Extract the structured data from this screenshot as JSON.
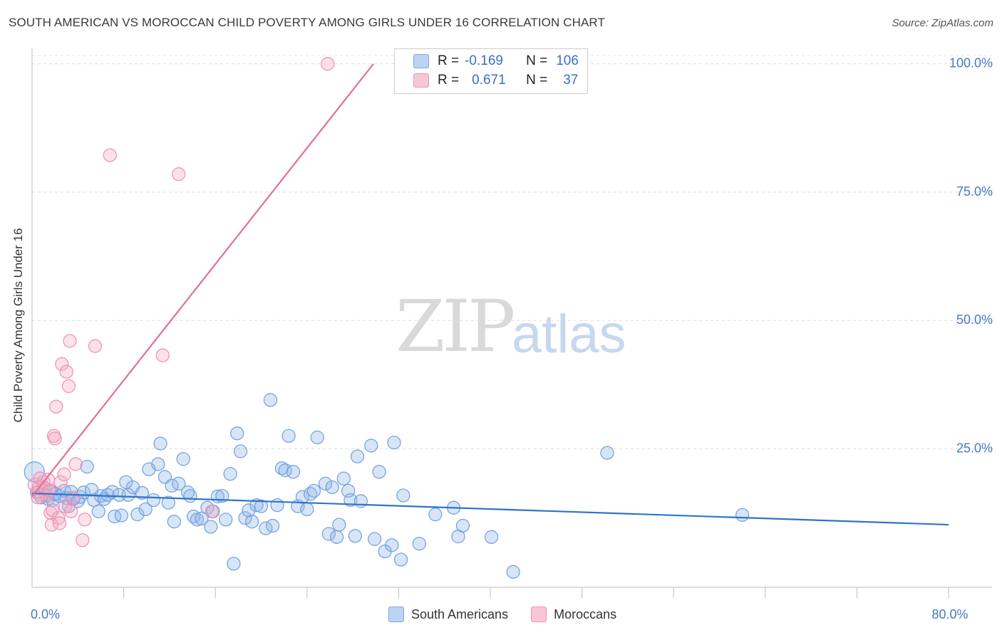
{
  "title": "SOUTH AMERICAN VS MOROCCAN CHILD POVERTY AMONG GIRLS UNDER 16 CORRELATION CHART",
  "source": "Source: ZipAtlas.com",
  "watermark": {
    "zip": "ZIP",
    "atlas": "atlas"
  },
  "legend_top": {
    "rows": [
      {
        "r_label": "R =",
        "r_value": "-0.169",
        "n_label": "N =",
        "n_value": "106",
        "color": "#8db4e8"
      },
      {
        "r_label": "R =",
        "r_value": "0.671",
        "n_label": "N =",
        "n_value": "37",
        "color": "#f4a9c0"
      }
    ]
  },
  "legend_bottom": {
    "south": "South Americans",
    "moroccan": "Moroccans"
  },
  "chart_data": {
    "type": "scatter",
    "ylabel": "Child Poverty Among Girls Under 16",
    "xlim": [
      0,
      80
    ],
    "ylim": [
      -2,
      103
    ],
    "y_ticks": [
      {
        "value": 25,
        "label": "25.0%"
      },
      {
        "value": 50,
        "label": "50.0%"
      },
      {
        "value": 75,
        "label": "75.0%"
      },
      {
        "value": 100,
        "label": "100.0%"
      }
    ],
    "x_tick_labels": [
      {
        "value": 0,
        "label": "0.0%"
      },
      {
        "value": 80,
        "label": "80.0%"
      }
    ],
    "x_minor_ticks": [
      8,
      16,
      24,
      32,
      40,
      48,
      56,
      64,
      72,
      80
    ],
    "grid": true,
    "series": [
      {
        "name": "South Americans",
        "color": "#6f9fe0",
        "trend": {
          "x": [
            0,
            80
          ],
          "y": [
            16.3,
            10.2
          ],
          "color": "#2f74c9"
        },
        "points": [
          [
            0.2,
            20.5
          ],
          [
            0.5,
            16.5
          ],
          [
            0.8,
            15.5
          ],
          [
            1.0,
            17.5
          ],
          [
            1.2,
            16.0
          ],
          [
            1.4,
            15.2
          ],
          [
            1.6,
            16.8
          ],
          [
            1.8,
            15.0
          ],
          [
            2.0,
            16.2
          ],
          [
            2.4,
            15.8
          ],
          [
            2.8,
            16.8
          ],
          [
            3.0,
            15.4
          ],
          [
            3.2,
            13.8
          ],
          [
            3.4,
            16.6
          ],
          [
            3.6,
            15.2
          ],
          [
            4.0,
            14.8
          ],
          [
            4.2,
            15.6
          ],
          [
            4.5,
            16.5
          ],
          [
            4.8,
            21.5
          ],
          [
            5.2,
            17.0
          ],
          [
            5.4,
            15.0
          ],
          [
            5.8,
            12.8
          ],
          [
            6.0,
            15.8
          ],
          [
            6.3,
            15.2
          ],
          [
            6.6,
            16.0
          ],
          [
            7.0,
            16.6
          ],
          [
            7.2,
            11.8
          ],
          [
            7.6,
            16.0
          ],
          [
            7.8,
            12.0
          ],
          [
            8.2,
            18.5
          ],
          [
            8.4,
            16.0
          ],
          [
            8.8,
            17.5
          ],
          [
            9.2,
            12.2
          ],
          [
            9.6,
            16.4
          ],
          [
            9.9,
            13.2
          ],
          [
            10.2,
            21.0
          ],
          [
            10.6,
            15.0
          ],
          [
            11.0,
            22.0
          ],
          [
            11.2,
            26.0
          ],
          [
            11.6,
            19.5
          ],
          [
            11.9,
            14.5
          ],
          [
            12.2,
            17.8
          ],
          [
            12.4,
            10.8
          ],
          [
            12.8,
            18.2
          ],
          [
            13.2,
            23.0
          ],
          [
            13.6,
            16.5
          ],
          [
            13.8,
            15.8
          ],
          [
            14.1,
            11.8
          ],
          [
            14.4,
            11.2
          ],
          [
            14.8,
            11.4
          ],
          [
            15.3,
            13.5
          ],
          [
            15.6,
            9.8
          ],
          [
            15.8,
            12.8
          ],
          [
            16.2,
            15.7
          ],
          [
            16.6,
            15.8
          ],
          [
            16.9,
            11.2
          ],
          [
            17.3,
            20.1
          ],
          [
            17.6,
            2.6
          ],
          [
            17.9,
            28.0
          ],
          [
            18.2,
            24.5
          ],
          [
            18.6,
            11.5
          ],
          [
            18.9,
            13.0
          ],
          [
            19.2,
            10.8
          ],
          [
            19.6,
            14.0
          ],
          [
            20.0,
            13.8
          ],
          [
            20.4,
            9.5
          ],
          [
            20.8,
            34.5
          ],
          [
            21.0,
            10.0
          ],
          [
            21.4,
            14.0
          ],
          [
            21.8,
            21.2
          ],
          [
            22.1,
            20.8
          ],
          [
            22.4,
            27.5
          ],
          [
            22.8,
            20.5
          ],
          [
            23.2,
            13.8
          ],
          [
            23.6,
            15.6
          ],
          [
            24.0,
            13.2
          ],
          [
            24.3,
            16.2
          ],
          [
            24.6,
            16.8
          ],
          [
            24.9,
            27.2
          ],
          [
            25.6,
            18.2
          ],
          [
            25.9,
            8.4
          ],
          [
            26.2,
            17.5
          ],
          [
            26.6,
            7.8
          ],
          [
            26.8,
            10.2
          ],
          [
            27.2,
            19.2
          ],
          [
            27.6,
            16.8
          ],
          [
            27.8,
            15.0
          ],
          [
            28.2,
            8.0
          ],
          [
            28.4,
            23.5
          ],
          [
            28.7,
            14.8
          ],
          [
            29.6,
            25.6
          ],
          [
            29.9,
            7.4
          ],
          [
            30.3,
            20.5
          ],
          [
            30.8,
            5.0
          ],
          [
            31.4,
            6.2
          ],
          [
            31.6,
            26.2
          ],
          [
            32.2,
            3.4
          ],
          [
            32.4,
            15.9
          ],
          [
            33.8,
            6.5
          ],
          [
            35.2,
            12.2
          ],
          [
            36.8,
            13.5
          ],
          [
            37.2,
            7.9
          ],
          [
            37.6,
            10.0
          ],
          [
            40.1,
            7.8
          ],
          [
            42.0,
            1.0
          ],
          [
            50.2,
            24.2
          ],
          [
            62.0,
            12.1
          ]
        ]
      },
      {
        "name": "Moroccans",
        "color": "#f08fb0",
        "trend": {
          "x": [
            0,
            29.8
          ],
          "y": [
            15.7,
            100
          ],
          "color": "#e0709a"
        },
        "points": [
          [
            0.2,
            18.0
          ],
          [
            0.4,
            16.5
          ],
          [
            0.6,
            17.5
          ],
          [
            0.7,
            19.2
          ],
          [
            0.8,
            16.0
          ],
          [
            1.0,
            18.5
          ],
          [
            1.2,
            17.2
          ],
          [
            1.3,
            15.8
          ],
          [
            1.4,
            19.0
          ],
          [
            1.5,
            16.8
          ],
          [
            1.6,
            12.5
          ],
          [
            1.7,
            10.2
          ],
          [
            1.8,
            13.0
          ],
          [
            1.9,
            27.5
          ],
          [
            2.0,
            27.0
          ],
          [
            2.1,
            33.2
          ],
          [
            2.3,
            11.5
          ],
          [
            2.4,
            10.5
          ],
          [
            2.5,
            18.5
          ],
          [
            2.6,
            41.5
          ],
          [
            2.8,
            20.0
          ],
          [
            2.9,
            13.8
          ],
          [
            3.0,
            40.0
          ],
          [
            3.2,
            37.2
          ],
          [
            3.3,
            46.0
          ],
          [
            3.4,
            12.8
          ],
          [
            3.6,
            15.5
          ],
          [
            3.8,
            22.0
          ],
          [
            4.4,
            7.2
          ],
          [
            4.6,
            11.2
          ],
          [
            5.5,
            45.0
          ],
          [
            6.8,
            82.2
          ],
          [
            11.4,
            43.2
          ],
          [
            12.8,
            78.5
          ],
          [
            15.7,
            12.8
          ],
          [
            25.8,
            100.0
          ],
          [
            0.5,
            15.5
          ]
        ]
      }
    ]
  }
}
